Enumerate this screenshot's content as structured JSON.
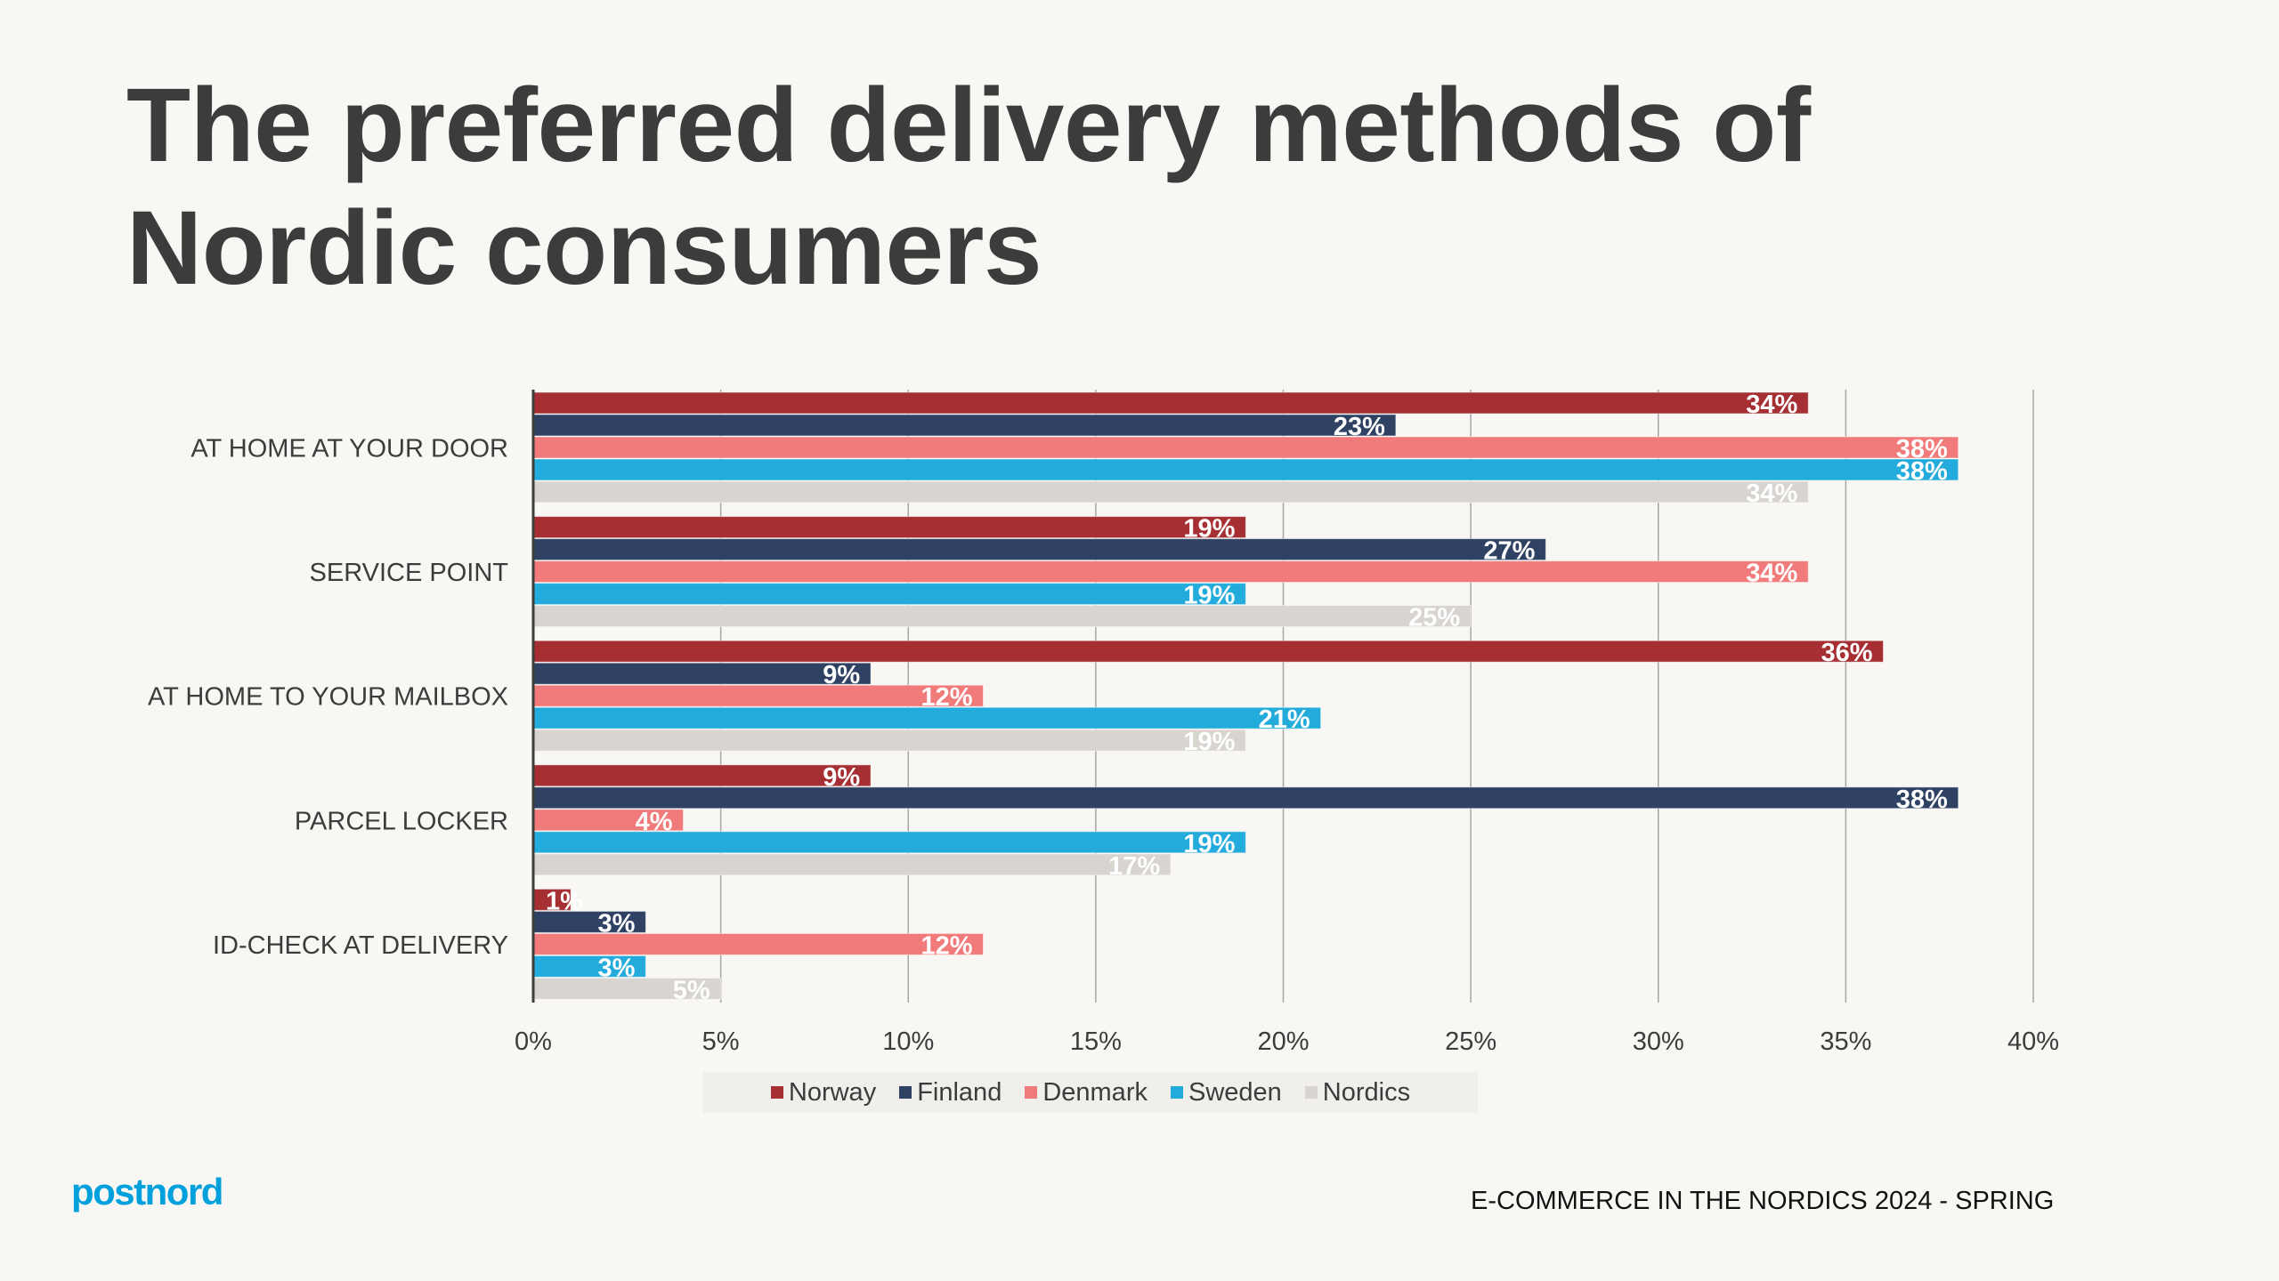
{
  "title": "The preferred delivery methods of Nordic consumers",
  "footer": "E-COMMERCE IN THE NORDICS 2024 - SPRING",
  "logo": "postnord",
  "colors": {
    "Norway": "#a52f32",
    "Finland": "#2f4263",
    "Denmark": "#f07b7a",
    "Sweden": "#23abdb",
    "Nordics": "#d8d5d1",
    "logo": "#00a0dc"
  },
  "chart_data": {
    "type": "bar",
    "orientation": "horizontal",
    "categories": [
      "AT HOME AT YOUR DOOR",
      "SERVICE POINT",
      "AT HOME TO YOUR MAILBOX",
      "PARCEL LOCKER",
      "ID-CHECK AT DELIVERY"
    ],
    "series": [
      {
        "name": "Norway",
        "values": [
          34,
          19,
          36,
          9,
          1
        ]
      },
      {
        "name": "Finland",
        "values": [
          23,
          27,
          9,
          38,
          3
        ]
      },
      {
        "name": "Denmark",
        "values": [
          38,
          34,
          12,
          4,
          12
        ]
      },
      {
        "name": "Sweden",
        "values": [
          38,
          19,
          21,
          19,
          3
        ]
      },
      {
        "name": "Nordics",
        "values": [
          34,
          25,
          19,
          17,
          5
        ]
      }
    ],
    "xlim": [
      0,
      40
    ],
    "xticks": [
      "0%",
      "5%",
      "10%",
      "15%",
      "20%",
      "25%",
      "30%",
      "35%",
      "40%"
    ],
    "value_suffix": "%",
    "grid": true,
    "legend_position": "bottom"
  }
}
